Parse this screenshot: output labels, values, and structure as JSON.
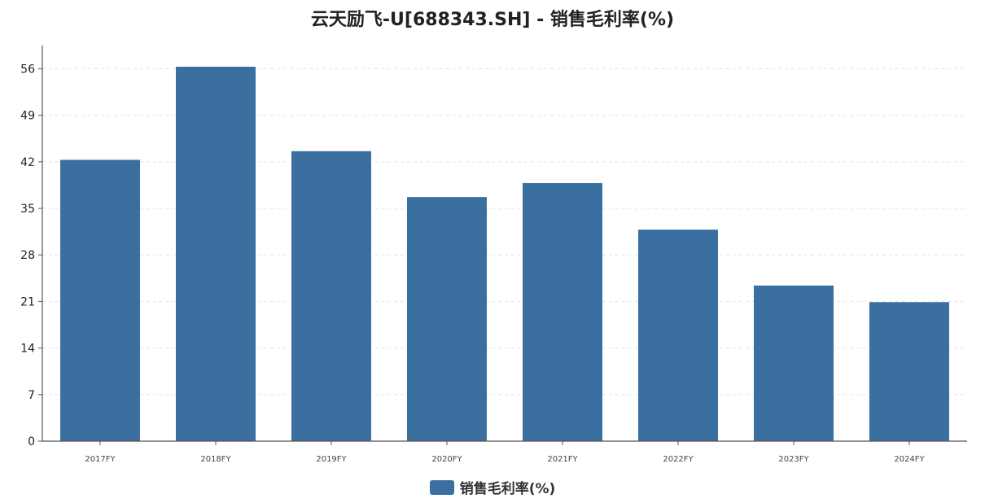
{
  "chart_data": {
    "type": "bar",
    "title": "云天励飞-U[688343.SH] - 销售毛利率(%)",
    "categories": [
      "2017FY",
      "2018FY",
      "2019FY",
      "2020FY",
      "2021FY",
      "2022FY",
      "2023FY",
      "2024FY"
    ],
    "series": [
      {
        "name": "销售毛利率(%)",
        "values": [
          42.3,
          56.3,
          43.6,
          36.7,
          38.8,
          31.8,
          23.4,
          20.9
        ]
      }
    ],
    "yticks": [
      0,
      7,
      14,
      21,
      28,
      35,
      42,
      49,
      56
    ],
    "ylim": [
      0,
      58.5
    ],
    "xlabel": "",
    "ylabel": "",
    "grid": "horizontal dashed",
    "legend_position": "bottom-center",
    "colors": {
      "bar": "#3a6fa0",
      "axis": "#555555",
      "grid": "#e3e3e3",
      "text": "#222222"
    }
  }
}
